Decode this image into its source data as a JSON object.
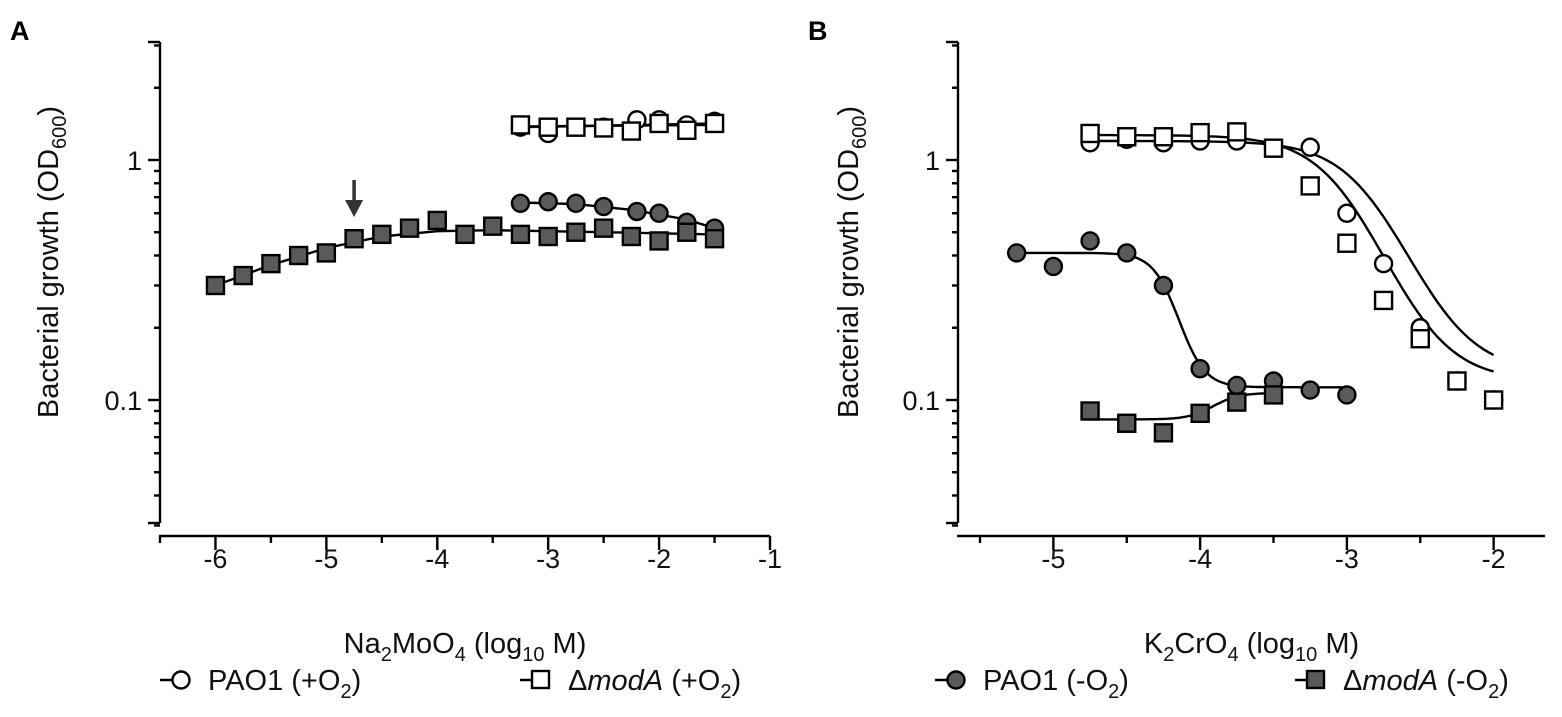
{
  "figure": {
    "legend": [
      {
        "id": "pao1_o2",
        "marker": "circle",
        "fill": "#ffffff",
        "label_main": "PAO1 (+O",
        "label_sub": "2",
        "label_end": ")",
        "italic": false
      },
      {
        "id": "moda_o2",
        "marker": "square",
        "fill": "#ffffff",
        "label_prefix": "Δ",
        "label_main": "modA",
        "label_mid": " (+O",
        "label_sub": "2",
        "label_end": ")",
        "italic": true
      },
      {
        "id": "pao1_no2",
        "marker": "circle",
        "fill": "#5a5a5a",
        "label_main": "PAO1 (-O",
        "label_sub": "2",
        "label_end": ")",
        "italic": false
      },
      {
        "id": "moda_no2",
        "marker": "square",
        "fill": "#5a5a5a",
        "label_prefix": "Δ",
        "label_main": "modA",
        "label_mid": " (-O",
        "label_sub": "2",
        "label_end": ")",
        "italic": true
      }
    ]
  },
  "chart_data": [
    {
      "panel": "A",
      "type": "scatter",
      "title": "",
      "xlabel": {
        "main": "Na",
        "sub1": "2",
        "mid": "MoO",
        "sub2": "4",
        "rest": " (log",
        "sub3": "10",
        "end": " M)"
      },
      "ylabel": {
        "main": "Bacterial growth (OD",
        "sub": "600",
        "end": ")"
      },
      "xlim": [
        -6.5,
        -1
      ],
      "ylim": [
        0.03,
        3
      ],
      "yscale": "log",
      "xticks": [
        -6,
        -5,
        -4,
        -3,
        -2,
        -1
      ],
      "xtick_labels": [
        "-6",
        "-5",
        "-4",
        "-3",
        "-2",
        "-1"
      ],
      "yticks": [
        0.1,
        1
      ],
      "ytick_labels": [
        "0.1",
        "1"
      ],
      "annotation": {
        "type": "arrow",
        "x": -4.75,
        "label": "arrow"
      },
      "series": [
        {
          "name": "PAO1 (+O2)",
          "marker": "circle",
          "fill": "#ffffff",
          "x": [
            -3.25,
            -3.0,
            -2.75,
            -2.5,
            -2.2,
            -2.0,
            -1.75,
            -1.5
          ],
          "y": [
            1.37,
            1.29,
            1.37,
            1.37,
            1.47,
            1.47,
            1.4,
            1.45
          ],
          "curve": [
            [
              -3.25,
              1.37
            ],
            [
              -1.5,
              1.42
            ]
          ]
        },
        {
          "name": "ΔmodA (+O2)",
          "marker": "square",
          "fill": "#ffffff",
          "x": [
            -3.25,
            -3.0,
            -2.75,
            -2.5,
            -2.25,
            -2.0,
            -1.75,
            -1.5
          ],
          "y": [
            1.4,
            1.37,
            1.37,
            1.36,
            1.32,
            1.42,
            1.33,
            1.42
          ],
          "curve": [
            [
              -3.25,
              1.38
            ],
            [
              -1.5,
              1.4
            ]
          ]
        },
        {
          "name": "PAO1 (-O2)",
          "marker": "circle",
          "fill": "#5a5a5a",
          "x": [
            -3.25,
            -3.0,
            -2.75,
            -2.5,
            -2.2,
            -2.0,
            -1.75,
            -1.5
          ],
          "y": [
            0.66,
            0.67,
            0.66,
            0.64,
            0.61,
            0.6,
            0.55,
            0.52
          ],
          "curve": [
            [
              -3.25,
              0.665
            ],
            [
              -2.75,
              0.655
            ],
            [
              -2.25,
              0.62
            ],
            [
              -1.75,
              0.565
            ],
            [
              -1.5,
              0.52
            ]
          ]
        },
        {
          "name": "ΔmodA (-O2)",
          "marker": "square",
          "fill": "#5a5a5a",
          "x": [
            -6.0,
            -5.75,
            -5.5,
            -5.25,
            -5.0,
            -4.75,
            -4.5,
            -4.25,
            -4.0,
            -3.75,
            -3.5,
            -3.25,
            -3.0,
            -2.75,
            -2.5,
            -2.25,
            -2.0,
            -1.75,
            -1.5
          ],
          "y": [
            0.3,
            0.33,
            0.37,
            0.4,
            0.41,
            0.47,
            0.49,
            0.52,
            0.56,
            0.49,
            0.53,
            0.49,
            0.48,
            0.5,
            0.52,
            0.48,
            0.46,
            0.5,
            0.47
          ],
          "curve": [
            [
              -6.0,
              0.3
            ],
            [
              -5.5,
              0.365
            ],
            [
              -5.0,
              0.43
            ],
            [
              -4.5,
              0.48
            ],
            [
              -4.0,
              0.505
            ],
            [
              -3.5,
              0.51
            ],
            [
              -3.0,
              0.505
            ],
            [
              -2.5,
              0.5
            ],
            [
              -2.0,
              0.495
            ],
            [
              -1.5,
              0.49
            ]
          ]
        }
      ]
    },
    {
      "panel": "B",
      "type": "scatter",
      "title": "",
      "xlabel": {
        "main": "K",
        "sub1": "2",
        "mid": "CrO",
        "sub2": "4",
        "rest": " (log",
        "sub3": "10",
        "end": " M)"
      },
      "ylabel": {
        "main": "Bacterial growth (OD",
        "sub": "600",
        "end": ")"
      },
      "xlim": [
        -5.65,
        -1.65
      ],
      "ylim": [
        0.03,
        3
      ],
      "yscale": "log",
      "xticks": [
        -5,
        -4,
        -3,
        -2
      ],
      "xtick_labels": [
        "-5",
        "-4",
        "-3",
        "-2"
      ],
      "yticks": [
        0.1,
        1
      ],
      "ytick_labels": [
        "0.1",
        "1"
      ],
      "series": [
        {
          "name": "PAO1 (+O2)",
          "marker": "circle",
          "fill": "#ffffff",
          "x": [
            -4.75,
            -4.5,
            -4.25,
            -4.0,
            -3.75,
            -3.5,
            -3.25,
            -3.0,
            -2.75,
            -2.5,
            -2.25,
            -2.0
          ],
          "y": [
            1.18,
            1.22,
            1.18,
            1.2,
            1.2,
            1.12,
            1.13,
            0.6,
            0.37,
            0.2,
            0.12,
            0.1
          ],
          "curve": "sigmoid",
          "top": 1.2,
          "bottom": 0.13,
          "ic50": -2.82,
          "hill": -2.0,
          "xrange": [
            -4.75,
            -2.0
          ]
        },
        {
          "name": "ΔmodA (+O2)",
          "marker": "square",
          "fill": "#ffffff",
          "x": [
            -4.75,
            -4.5,
            -4.25,
            -4.0,
            -3.75,
            -3.5,
            -3.25,
            -3.0,
            -2.75,
            -2.5,
            -2.25,
            -2.0
          ],
          "y": [
            1.29,
            1.25,
            1.25,
            1.3,
            1.31,
            1.12,
            0.78,
            0.45,
            0.26,
            0.18,
            0.12,
            0.1
          ],
          "curve": "sigmoid",
          "top": 1.27,
          "bottom": 0.12,
          "ic50": -3.0,
          "hill": -2.0,
          "xrange": [
            -4.75,
            -2.0
          ]
        },
        {
          "name": "PAO1 (-O2)",
          "marker": "circle",
          "fill": "#5a5a5a",
          "x": [
            -5.25,
            -5.0,
            -4.75,
            -4.5,
            -4.25,
            -4.0,
            -3.75,
            -3.5,
            -3.25,
            -3.0
          ],
          "y": [
            0.41,
            0.36,
            0.46,
            0.41,
            0.3,
            0.135,
            0.115,
            0.12,
            0.11,
            0.105
          ],
          "curve": "sigmoid",
          "top": 0.41,
          "bottom": 0.113,
          "ic50": -4.2,
          "hill": -5.0,
          "xrange": [
            -5.25,
            -3.0
          ]
        },
        {
          "name": "ΔmodA (-O2)",
          "marker": "square",
          "fill": "#5a5a5a",
          "x": [
            -4.75,
            -4.5,
            -4.25,
            -4.0,
            -3.75,
            -3.5
          ],
          "y": [
            0.09,
            0.08,
            0.073,
            0.088,
            0.098,
            0.105
          ],
          "curve": "sigmoid",
          "top": 0.083,
          "bottom": 0.107,
          "ic50": -3.9,
          "hill": -5.0,
          "xrange": [
            -4.75,
            -3.5
          ]
        }
      ]
    }
  ]
}
